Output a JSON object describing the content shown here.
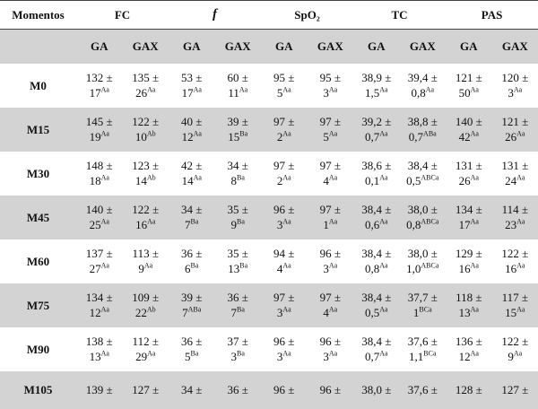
{
  "table": {
    "header": [
      "Momentos",
      "FC",
      "f",
      "SpO₂",
      "TC",
      "PAS"
    ],
    "subheader": [
      "GA",
      "GAX",
      "GA",
      "GAX",
      "GA",
      "GAX",
      "GA",
      "GAX",
      "GA",
      "GAX"
    ],
    "rows": [
      {
        "label": "M0",
        "cells": [
          [
            "132 ±",
            "17",
            "Aa"
          ],
          [
            "135 ±",
            "26",
            "Aa"
          ],
          [
            "53 ±",
            "17",
            "Aa"
          ],
          [
            "60 ±",
            "11",
            "Aa"
          ],
          [
            "95 ±",
            "5",
            "Aa"
          ],
          [
            "95 ±",
            "3",
            "Aa"
          ],
          [
            "38,9 ±",
            "1,5",
            "Aa"
          ],
          [
            "39,4 ±",
            "0,8",
            "Aa"
          ],
          [
            "121 ±",
            "50",
            "Aa"
          ],
          [
            "120 ±",
            "3",
            "Aa"
          ]
        ]
      },
      {
        "label": "M15",
        "cells": [
          [
            "145 ±",
            "19",
            "Aa"
          ],
          [
            "122 ±",
            "10",
            "Ab"
          ],
          [
            "40 ±",
            "12",
            "Aa"
          ],
          [
            "39 ±",
            "15",
            "Ba"
          ],
          [
            "97 ±",
            "2",
            "Aa"
          ],
          [
            "97 ±",
            "5",
            "Aa"
          ],
          [
            "39,2 ±",
            "0,7",
            "Aa"
          ],
          [
            "38,8 ±",
            "0,7",
            "ABa"
          ],
          [
            "140 ±",
            "42",
            "Aa"
          ],
          [
            "121 ±",
            "26",
            "Aa"
          ]
        ]
      },
      {
        "label": "M30",
        "cells": [
          [
            "148 ±",
            "18",
            "Aa"
          ],
          [
            "123 ±",
            "14",
            "Ab"
          ],
          [
            "42 ±",
            "14",
            "Aa"
          ],
          [
            "34 ±",
            "8",
            "Ba"
          ],
          [
            "97 ±",
            "2",
            "Aa"
          ],
          [
            "97 ±",
            "4",
            "Aa"
          ],
          [
            "38,6 ±",
            "0,1",
            "Aa"
          ],
          [
            "38,4 ±",
            "0,5",
            "ABCa"
          ],
          [
            "131 ±",
            "26",
            "Aa"
          ],
          [
            "131 ±",
            "24",
            "Aa"
          ]
        ]
      },
      {
        "label": "M45",
        "cells": [
          [
            "140 ±",
            "25",
            "Aa"
          ],
          [
            "122 ±",
            "16",
            "Aa"
          ],
          [
            "34 ±",
            "7",
            "Ba"
          ],
          [
            "35 ±",
            "9",
            "Ba"
          ],
          [
            "96 ±",
            "3",
            "Aa"
          ],
          [
            "97 ±",
            "1",
            "Aa"
          ],
          [
            "38,4 ±",
            "0,6",
            "Aa"
          ],
          [
            "38,0 ±",
            "0,8",
            "ABCa"
          ],
          [
            "134 ±",
            "17",
            "Aa"
          ],
          [
            "114 ±",
            "23",
            "Aa"
          ]
        ]
      },
      {
        "label": "M60",
        "cells": [
          [
            "137 ±",
            "27",
            "Aa"
          ],
          [
            "113 ±",
            "9",
            "Aa"
          ],
          [
            "36 ±",
            "6",
            "Ba"
          ],
          [
            "35 ±",
            "13",
            "Ba"
          ],
          [
            "94 ±",
            "4",
            "Aa"
          ],
          [
            "96 ±",
            "3",
            "Aa"
          ],
          [
            "38,4 ±",
            "0,8",
            "Aa"
          ],
          [
            "38,0 ±",
            "1,0",
            "ABCa"
          ],
          [
            "129 ±",
            "16",
            "Aa"
          ],
          [
            "122 ±",
            "16",
            "Aa"
          ]
        ]
      },
      {
        "label": "M75",
        "cells": [
          [
            "134 ±",
            "12",
            "Aa"
          ],
          [
            "109 ±",
            "22",
            "Ab"
          ],
          [
            "39 ±",
            "7",
            "ABa"
          ],
          [
            "36 ±",
            "7",
            "Ba"
          ],
          [
            "97 ±",
            "3",
            "Aa"
          ],
          [
            "97 ±",
            "4",
            "Aa"
          ],
          [
            "38,4 ±",
            "0,5",
            "Aa"
          ],
          [
            "37,7 ±",
            "1",
            "BCa"
          ],
          [
            "118 ±",
            "13",
            "Aa"
          ],
          [
            "117 ±",
            "15",
            "Aa"
          ]
        ]
      },
      {
        "label": "M90",
        "cells": [
          [
            "138 ±",
            "13",
            "Aa"
          ],
          [
            "112 ±",
            "29",
            "Aa"
          ],
          [
            "36 ±",
            "5",
            "Ba"
          ],
          [
            "37 ±",
            "3",
            "Ba"
          ],
          [
            "96 ±",
            "3",
            "Aa"
          ],
          [
            "96 ±",
            "3",
            "Aa"
          ],
          [
            "38,4 ±",
            "0,7",
            "Aa"
          ],
          [
            "37,6 ±",
            "1,1",
            "BCa"
          ],
          [
            "136 ±",
            "12",
            "Aa"
          ],
          [
            "122 ±",
            "9",
            "Aa"
          ]
        ]
      },
      {
        "label": "M105",
        "cells": [
          [
            "139 ±"
          ],
          [
            "127 ±"
          ],
          [
            "34 ±"
          ],
          [
            "36 ±"
          ],
          [
            "96 ±"
          ],
          [
            "96 ±"
          ],
          [
            "38,0 ±"
          ],
          [
            "37,6 ±"
          ],
          [
            "128 ±"
          ],
          [
            "127 ±"
          ]
        ]
      }
    ]
  }
}
